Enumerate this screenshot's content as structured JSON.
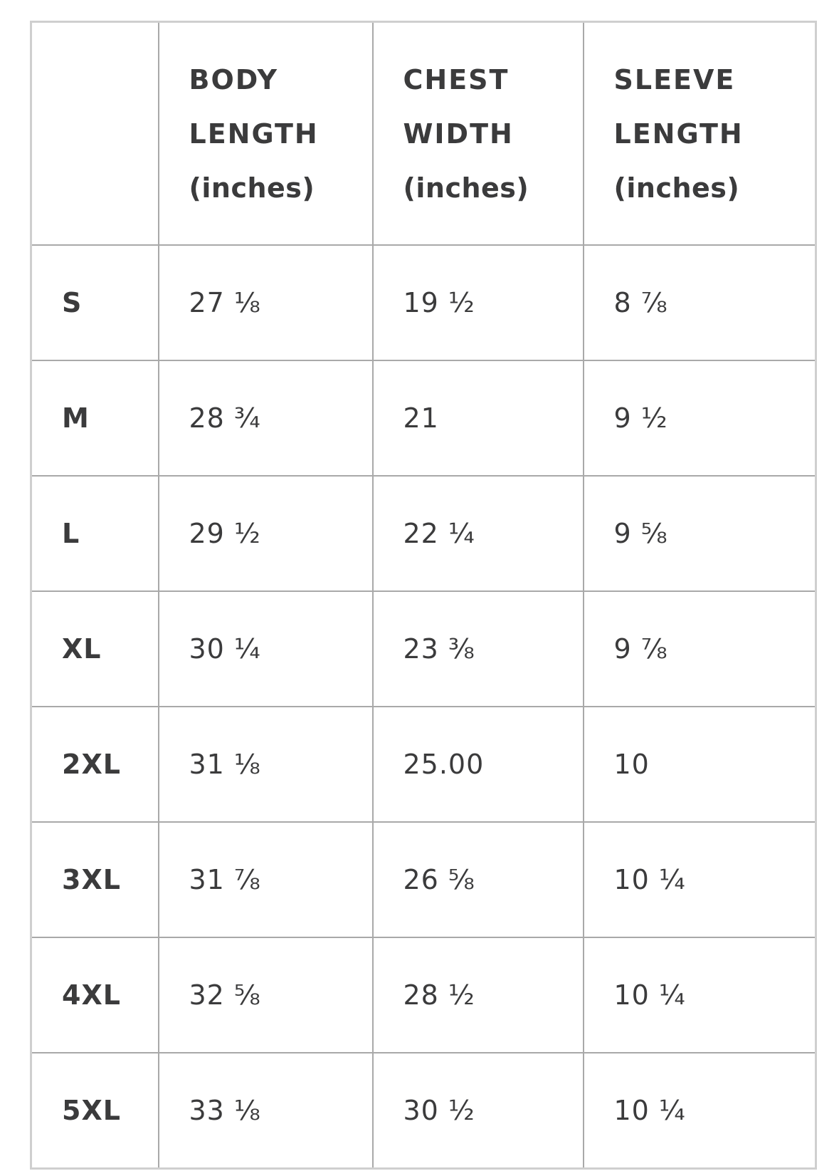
{
  "headers": [
    {
      "line1": "",
      "line2": "",
      "unit": ""
    },
    {
      "line1": "BODY",
      "line2": "LENGTH",
      "unit": "(inches)"
    },
    {
      "line1": "CHEST",
      "line2": "WIDTH",
      "unit": "(inches)"
    },
    {
      "line1": "SLEEVE",
      "line2": "LENGTH",
      "unit": "(inches)"
    }
  ],
  "rows": [
    {
      "size": "S",
      "body": "27 ⅛",
      "chest": "19 ½",
      "sleeve": "8 ⅞"
    },
    {
      "size": "M",
      "body": "28 ¾",
      "chest": "21",
      "sleeve": "9 ½"
    },
    {
      "size": "L",
      "body": "29 ½",
      "chest": "22 ¼",
      "sleeve": "9 ⅝"
    },
    {
      "size": "XL",
      "body": "30 ¼",
      "chest": "23 ⅜",
      "sleeve": "9 ⅞"
    },
    {
      "size": "2XL",
      "body": "31 ⅛",
      "chest": "25.00",
      "sleeve": "10"
    },
    {
      "size": "3XL",
      "body": "31 ⅞",
      "chest": "26 ⅝",
      "sleeve": "10 ¼"
    },
    {
      "size": "4XL",
      "body": "32 ⅝",
      "chest": "28 ½",
      "sleeve": "10 ¼"
    },
    {
      "size": "5XL",
      "body": "33 ⅛",
      "chest": "30 ½",
      "sleeve": "10 ¼"
    }
  ],
  "colors": {
    "text": "#3b3b3c",
    "grid": "#a9a9a9",
    "outer_border": "#cfcfcf"
  }
}
